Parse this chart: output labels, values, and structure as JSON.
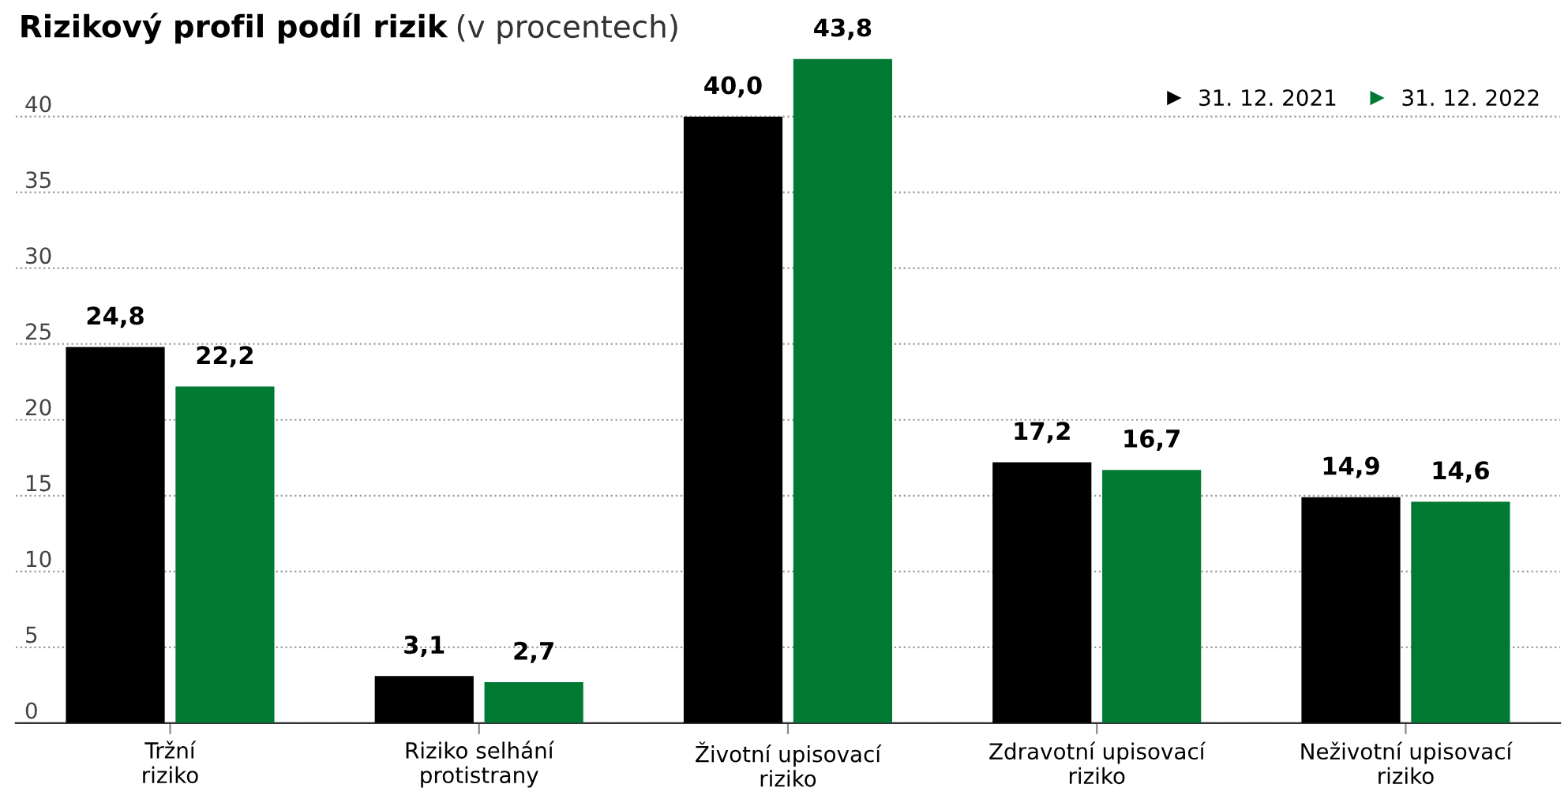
{
  "chart_data": {
    "type": "bar",
    "title": "Rizikový profil podíl rizik",
    "subtitle": "(v procentech)",
    "categories": [
      "Tržní\nriziko",
      "Riziko selhání\nprotistrany",
      "Životní upisovací\nriziko",
      "Zdravotní upisovací\nriziko",
      "Neživotní upisovací\nriziko"
    ],
    "series": [
      {
        "name": "31. 12. 2021",
        "color": "#000000",
        "values": [
          24.8,
          3.1,
          40.0,
          17.2,
          14.9
        ]
      },
      {
        "name": "31. 12. 2022",
        "color": "#007a33",
        "values": [
          22.2,
          2.7,
          43.8,
          16.7,
          14.6
        ]
      }
    ],
    "value_labels": [
      [
        "24,8",
        "3,1",
        "40,0",
        "17,2",
        "14,9"
      ],
      [
        "22,2",
        "2,7",
        "43,8",
        "16,7",
        "14,6"
      ]
    ],
    "ylim": [
      0,
      44
    ],
    "yticks": [
      0,
      5,
      10,
      15,
      20,
      25,
      30,
      35,
      40
    ],
    "grid": "y",
    "legend": "top right",
    "marker": "triangle"
  }
}
